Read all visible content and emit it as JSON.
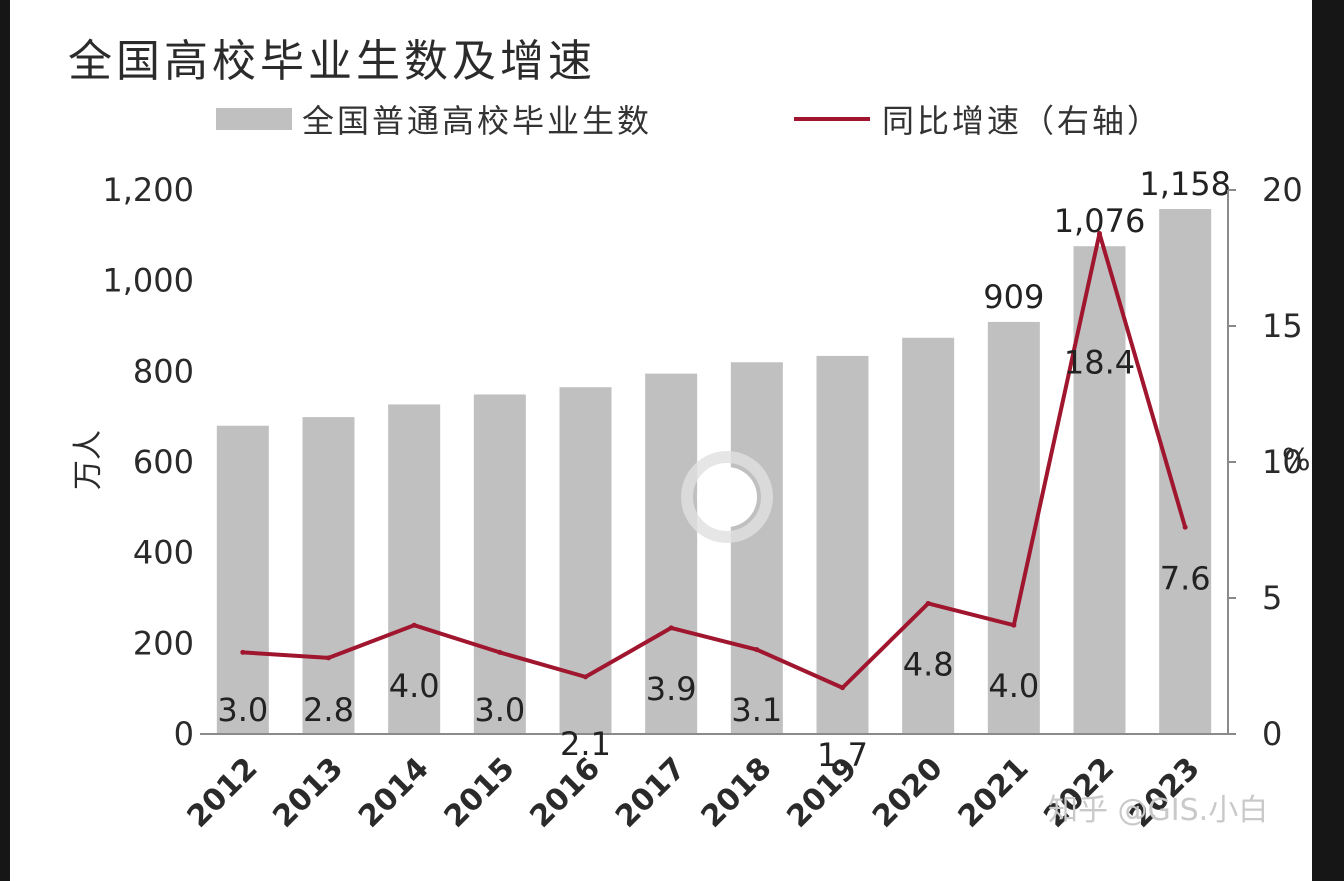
{
  "chart_data": {
    "type": "bar",
    "title": "全国高校毕业生数及增速",
    "categories": [
      "2012",
      "2013",
      "2014",
      "2015",
      "2016",
      "2017",
      "2018",
      "2019",
      "2020",
      "2021",
      "2022",
      "2023"
    ],
    "series": [
      {
        "name": "全国普通高校毕业生数",
        "type": "bar",
        "axis": "left",
        "values": [
          680,
          699,
          727,
          749,
          765,
          795,
          820,
          834,
          874,
          909,
          1076,
          1158
        ],
        "value_labels": [
          "",
          "",
          "",
          "",
          "",
          "",
          "",
          "",
          "",
          "909",
          "1,076",
          "1,158"
        ],
        "color": "#c0c0c0"
      },
      {
        "name": "同比增速（右轴）",
        "type": "line",
        "axis": "right",
        "values": [
          3.0,
          2.8,
          4.0,
          3.0,
          2.1,
          3.9,
          3.1,
          1.7,
          4.8,
          4.0,
          18.4,
          7.6
        ],
        "value_labels": [
          "3.0",
          "2.8",
          "4.0",
          "3.0",
          "2.1",
          "3.9",
          "3.1",
          "1.7",
          "4.8",
          "4.0",
          "18.4",
          "7.6"
        ],
        "color": "#a0162e"
      }
    ],
    "ylabel": "万人",
    "ylim": [
      0,
      1200
    ],
    "yticks": [
      "0",
      "200",
      "400",
      "600",
      "800",
      "1,000",
      "1,200"
    ],
    "y2label": "%",
    "y2lim": [
      0,
      20
    ],
    "y2ticks": [
      "0",
      "5",
      "10",
      "15",
      "20"
    ],
    "legend_position": "top",
    "grid": false
  },
  "watermark": "知乎 @GIS.小白"
}
